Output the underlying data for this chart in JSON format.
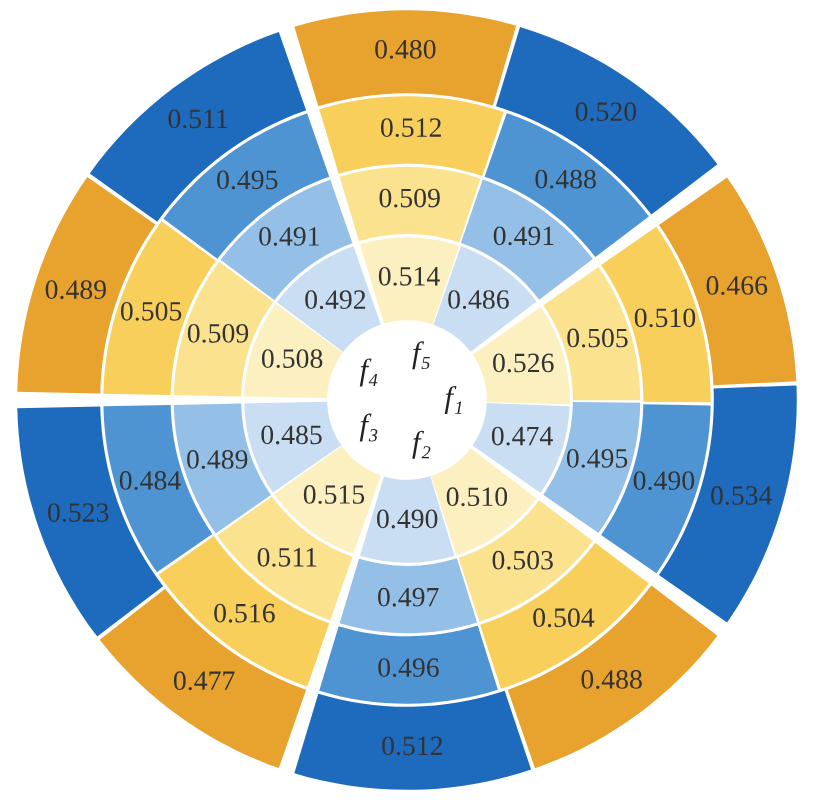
{
  "chart_data": {
    "type": "other",
    "categories": [
      "f₁",
      "f₅",
      "f₄",
      "f₃",
      "f₂"
    ],
    "series": [
      {
        "color": "#c9def2",
        "values": [
          0.474,
          0.486,
          0.492,
          0.485,
          0.49
        ],
        "value_labels": [
          "0.474",
          "0.486",
          "0.492",
          "0.485",
          "0.490"
        ]
      },
      {
        "color": "#fdf0c0",
        "values": [
          0.526,
          0.514,
          0.508,
          0.515,
          0.51
        ],
        "value_labels": [
          "0.526",
          "0.514",
          "0.508",
          "0.515",
          "0.510"
        ]
      },
      {
        "color": "#94bfe6",
        "values": [
          0.495,
          0.491,
          0.491,
          0.489,
          0.497
        ],
        "value_labels": [
          "0.495",
          "0.491",
          "0.491",
          "0.489",
          "0.497"
        ]
      },
      {
        "color": "#fbe28e",
        "values": [
          0.505,
          0.509,
          0.509,
          0.511,
          0.503
        ],
        "value_labels": [
          "0.505",
          "0.509",
          "0.509",
          "0.511",
          "0.503"
        ]
      },
      {
        "color": "#4f94d2",
        "values": [
          0.49,
          0.488,
          0.495,
          0.484,
          0.496
        ],
        "value_labels": [
          "0.490",
          "0.488",
          "0.495",
          "0.484",
          "0.496"
        ]
      },
      {
        "color": "#f7cf5a",
        "values": [
          0.51,
          0.512,
          0.505,
          0.516,
          0.504
        ],
        "value_labels": [
          "0.510",
          "0.512",
          "0.505",
          "0.516",
          "0.504"
        ]
      },
      {
        "color": "#1e6bbd",
        "values": [
          0.534,
          0.52,
          0.511,
          0.523,
          0.512
        ],
        "value_labels": [
          "0.534",
          "0.520",
          "0.511",
          "0.523",
          "0.512"
        ]
      },
      {
        "color": "#e8a22e",
        "values": [
          0.466,
          0.48,
          0.489,
          0.477,
          0.488
        ],
        "value_labels": [
          "0.466",
          "0.480",
          "0.489",
          "0.477",
          "0.488"
        ]
      }
    ]
  }
}
